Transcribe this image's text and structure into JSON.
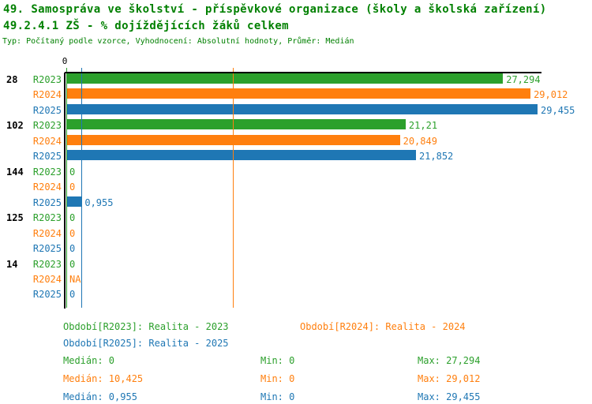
{
  "header": {
    "title_line1": "49. Samospráva ve školství - příspěvkové organizace (školy a školská zařízení)",
    "title_line2": "49.2.4.1 ZŠ - % dojíždějících žáků celkem",
    "subtitle": "Typ: Počítaný podle vzorce, Vyhodnocení: Absolutní hodnoty, Průměr: Medián"
  },
  "colors": {
    "title_green": "#008000",
    "r2023_green": "#2ca02c",
    "r2024_orange": "#ff7f0e",
    "r2025_blue": "#1f77b4",
    "axis_black": "#000000"
  },
  "chart_data": {
    "type": "bar",
    "orientation": "horizontal",
    "zero_tick_label": "0",
    "xlim": [
      0,
      30
    ],
    "grid": false,
    "categories": [
      "28",
      "102",
      "144",
      "125",
      "14"
    ],
    "series_names": [
      "R2023",
      "R2024",
      "R2025"
    ],
    "series_colors": [
      "#2ca02c",
      "#ff7f0e",
      "#1f77b4"
    ],
    "groups": [
      {
        "category": "28",
        "bars": [
          {
            "series": "R2023",
            "value": 27.294,
            "label": "27,294"
          },
          {
            "series": "R2024",
            "value": 29.012,
            "label": "29,012"
          },
          {
            "series": "R2025",
            "value": 29.455,
            "label": "29,455"
          }
        ]
      },
      {
        "category": "102",
        "bars": [
          {
            "series": "R2023",
            "value": 21.21,
            "label": "21,21"
          },
          {
            "series": "R2024",
            "value": 20.849,
            "label": "20,849"
          },
          {
            "series": "R2025",
            "value": 21.852,
            "label": "21,852"
          }
        ]
      },
      {
        "category": "144",
        "bars": [
          {
            "series": "R2023",
            "value": 0,
            "label": "0"
          },
          {
            "series": "R2024",
            "value": 0,
            "label": "0"
          },
          {
            "series": "R2025",
            "value": 0.955,
            "label": "0,955"
          }
        ]
      },
      {
        "category": "125",
        "bars": [
          {
            "series": "R2023",
            "value": 0,
            "label": "0"
          },
          {
            "series": "R2024",
            "value": 0,
            "label": "0"
          },
          {
            "series": "R2025",
            "value": 0,
            "label": "0"
          }
        ]
      },
      {
        "category": "14",
        "bars": [
          {
            "series": "R2023",
            "value": 0,
            "label": "0"
          },
          {
            "series": "R2024",
            "value": null,
            "label": "NA"
          },
          {
            "series": "R2025",
            "value": 0,
            "label": "0"
          }
        ]
      }
    ],
    "median_lines": [
      {
        "series": "R2023",
        "value": 0,
        "color": "#2ca02c"
      },
      {
        "series": "R2024",
        "value": 10.425,
        "color": "#ff7f0e"
      },
      {
        "series": "R2025",
        "value": 0.955,
        "color": "#1f77b4"
      }
    ]
  },
  "legend": {
    "items": [
      {
        "text": "Období[R2023]: Realita - 2023",
        "color": "#2ca02c"
      },
      {
        "text": "Období[R2024]: Realita - 2024",
        "color": "#ff7f0e"
      },
      {
        "text": "Období[R2025]: Realita - 2025",
        "color": "#1f77b4"
      }
    ]
  },
  "stats": {
    "rows": [
      {
        "series": "R2023",
        "color": "#2ca02c",
        "median": "Medián: 0",
        "min": "Min: 0",
        "max": "Max: 27,294"
      },
      {
        "series": "R2024",
        "color": "#ff7f0e",
        "median": "Medián: 10,425",
        "min": "Min: 0",
        "max": "Max: 29,012"
      },
      {
        "series": "R2025",
        "color": "#1f77b4",
        "median": "Medián: 0,955",
        "min": "Min: 0",
        "max": "Max: 29,455"
      }
    ]
  }
}
